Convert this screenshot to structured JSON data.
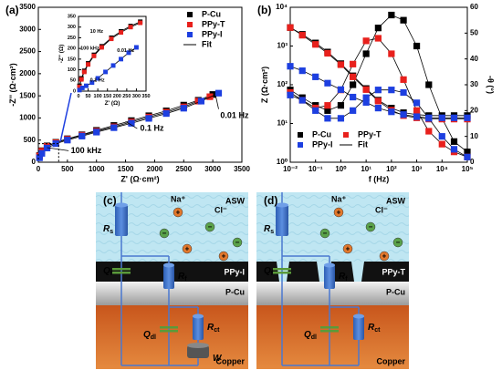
{
  "chart_data": [
    {
      "type": "scatter",
      "panel_label": "(a)",
      "x_label": "Z' (Ω·cm²)",
      "y_label": "-Z'' (Ω·cm²)",
      "xlim": [
        0,
        3500
      ],
      "ylim": [
        0,
        3500
      ],
      "xticks": [
        0,
        500,
        1000,
        1500,
        2000,
        2500,
        3000,
        3500
      ],
      "yticks": [
        0,
        500,
        1000,
        1500,
        2000,
        2500,
        3000,
        3500
      ],
      "legend": "upper right",
      "fit_label": "Fit",
      "annotations": [
        "0.01 Hz",
        "0.1 Hz",
        "100 kHz"
      ],
      "series": [
        {
          "name": "P-Cu",
          "color": "#000000",
          "x": [
            20,
            60,
            150,
            300,
            500,
            750,
            1000,
            1300,
            1600,
            1900,
            2200,
            2500,
            2750,
            3000
          ],
          "values": [
            150,
            260,
            370,
            450,
            530,
            620,
            720,
            830,
            940,
            1050,
            1160,
            1290,
            1400,
            1530
          ]
        },
        {
          "name": "PPy-T",
          "color": "#e8201c",
          "x": [
            20,
            60,
            150,
            300,
            500,
            750,
            1000,
            1300,
            1600,
            1900,
            2200,
            2500,
            2750,
            2950
          ],
          "values": [
            140,
            250,
            360,
            440,
            520,
            610,
            700,
            800,
            910,
            1020,
            1130,
            1250,
            1380,
            1480
          ]
        },
        {
          "name": "PPy-I",
          "color": "#1d3fe0",
          "x": [
            20,
            60,
            150,
            300,
            500,
            750,
            1000,
            1300,
            1600,
            1900,
            2200,
            2500,
            2800,
            3100
          ],
          "values": [
            100,
            200,
            320,
            420,
            500,
            590,
            680,
            780,
            880,
            990,
            1100,
            1220,
            1380,
            1560
          ]
        }
      ]
    },
    {
      "type": "scatter",
      "x_label": "Z' (Ω)",
      "y_label": "-Z'' (Ω)",
      "xlim": [
        0,
        350
      ],
      "ylim": [
        0,
        350
      ],
      "xticks": [
        0,
        50,
        100,
        150,
        200,
        250,
        300,
        350
      ],
      "yticks": [
        0,
        50,
        100,
        150,
        200,
        250,
        300,
        350
      ],
      "fit_label": "Fit",
      "annotations": [
        "10 Hz",
        "100 kHz",
        "0.1 Hz",
        "0.01 Hz"
      ],
      "series": [
        {
          "name": "P-Cu",
          "color": "#000000",
          "x": [
            5,
            15,
            30,
            50,
            80,
            120,
            170,
            220,
            270,
            320
          ],
          "values": [
            25,
            60,
            95,
            130,
            170,
            210,
            250,
            280,
            305,
            325
          ]
        },
        {
          "name": "PPy-T",
          "color": "#e8201c",
          "x": [
            5,
            15,
            30,
            50,
            80,
            120,
            170,
            220,
            270,
            320
          ],
          "values": [
            20,
            55,
            90,
            125,
            165,
            205,
            245,
            275,
            300,
            320
          ]
        },
        {
          "name": "PPy-I",
          "color": "#1d3fe0",
          "x": [
            5,
            20,
            40,
            70,
            100,
            140,
            180,
            220,
            260,
            300
          ],
          "values": [
            5,
            15,
            25,
            40,
            60,
            90,
            120,
            150,
            180,
            205
          ]
        }
      ]
    },
    {
      "type": "bode",
      "panel_label": "(b)",
      "x_label": "f (Hz)",
      "y_label": "Z (Ω·cm²)",
      "y2_label": "-θ (°)",
      "x_log": true,
      "y_log": true,
      "xlim": [
        0.01,
        100000
      ],
      "ylim": [
        1,
        10000
      ],
      "y2lim": [
        0,
        60
      ],
      "xticks": [
        {
          "value": 0.01,
          "label": "10⁻²"
        },
        {
          "value": 0.1,
          "label": "10⁻¹"
        },
        {
          "value": 1,
          "label": "10⁰"
        },
        {
          "value": 10,
          "label": "10¹"
        },
        {
          "value": 100,
          "label": "10²"
        },
        {
          "value": 1000,
          "label": "10³"
        },
        {
          "value": 10000,
          "label": "10⁴"
        },
        {
          "value": 100000,
          "label": "10⁵"
        }
      ],
      "yticks": [
        {
          "value": 1,
          "label": "10⁰"
        },
        {
          "value": 10,
          "label": "10¹"
        },
        {
          "value": 100,
          "label": "10²"
        },
        {
          "value": 1000,
          "label": "10³"
        },
        {
          "value": 10000,
          "label": "10⁴"
        }
      ],
      "y2ticks": [
        0,
        10,
        20,
        30,
        40,
        50,
        60
      ],
      "legend": "lower left",
      "fit_label": "Fit",
      "x": [
        0.01,
        0.03,
        0.1,
        0.3,
        1,
        3,
        10,
        30,
        100,
        300,
        1000,
        3000,
        10000,
        30000,
        100000
      ],
      "series": [
        {
          "name": "P-Cu",
          "color": "#000000",
          "values": [
            3000,
            2000,
            1200,
            700,
            350,
            170,
            80,
            40,
            25,
            19,
            17,
            16,
            16,
            16,
            16
          ],
          "y2_values": [
            28,
            25,
            22,
            20,
            22,
            30,
            42,
            52,
            57,
            55,
            45,
            30,
            17,
            8,
            4
          ]
        },
        {
          "name": "PPy-T",
          "color": "#e8201c",
          "values": [
            3000,
            1900,
            1100,
            650,
            330,
            160,
            75,
            38,
            22,
            16,
            14,
            13,
            13,
            13,
            13
          ],
          "y2_values": [
            27,
            24,
            21,
            22,
            28,
            38,
            47,
            48,
            42,
            32,
            20,
            12,
            7,
            4,
            2
          ]
        },
        {
          "name": "PPy-I",
          "color": "#1d3fe0",
          "values": [
            300,
            230,
            160,
            110,
            75,
            48,
            35,
            25,
            20,
            17,
            15,
            14,
            14,
            14,
            14
          ],
          "y2_values": [
            26,
            24,
            20,
            17,
            17,
            20,
            25,
            28,
            28,
            27,
            23,
            17,
            10,
            5,
            2
          ]
        }
      ]
    }
  ],
  "diagrams": [
    {
      "label": "(c)",
      "medium": "ASW",
      "cation": "Na⁺",
      "anion": "Cl⁻",
      "coating": "PPy-I",
      "interlayer": "P-Cu",
      "substrate": "Copper",
      "elements": [
        {
          "main": "R",
          "sub": "s"
        },
        {
          "main": "Q",
          "sub": "f"
        },
        {
          "main": "R",
          "sub": "f"
        },
        {
          "main": "Q",
          "sub": "dl"
        },
        {
          "main": "R",
          "sub": "ct"
        },
        {
          "main": "W"
        }
      ]
    },
    {
      "label": "(d)",
      "medium": "ASW",
      "cation": "Na⁺",
      "anion": "Cl⁻",
      "coating": "PPy-T",
      "interlayer": "P-Cu",
      "substrate": "Copper",
      "elements": [
        {
          "main": "R",
          "sub": "s"
        },
        {
          "main": "Q",
          "sub": "f"
        },
        {
          "main": "R",
          "sub": "f"
        },
        {
          "main": "Q",
          "sub": "dl"
        },
        {
          "main": "R",
          "sub": "ct"
        }
      ]
    }
  ]
}
